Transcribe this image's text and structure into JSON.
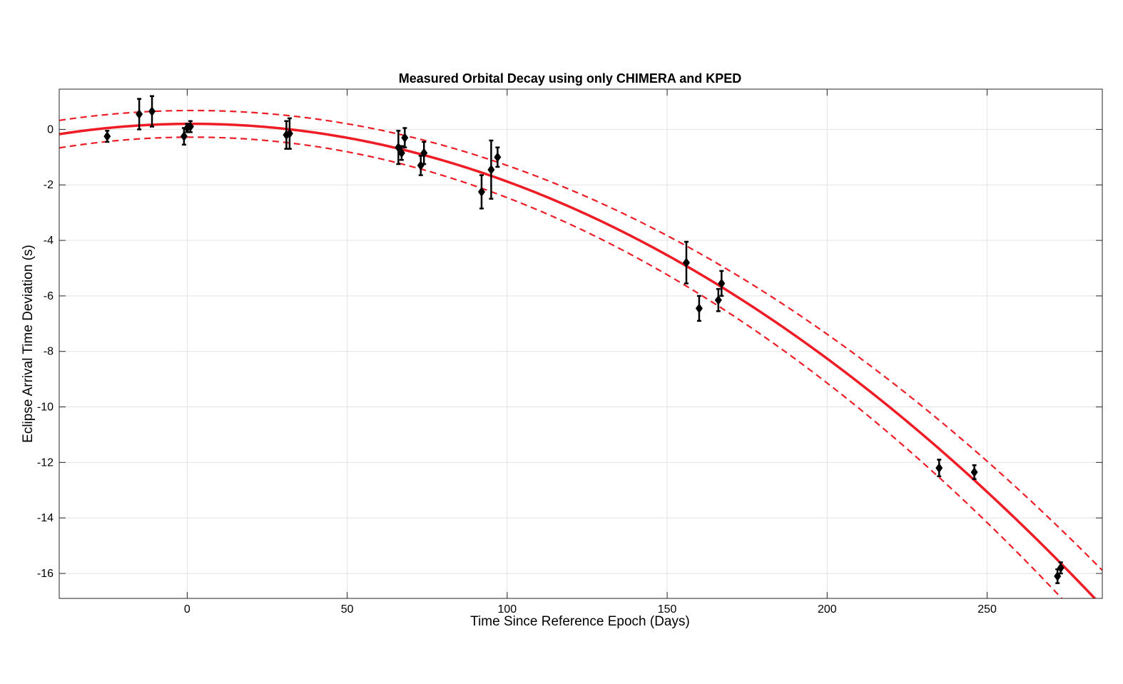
{
  "chart_data": {
    "type": "scatter",
    "title": "Measured Orbital Decay using only CHIMERA and KPED",
    "xlabel": "Time Since Reference Epoch (Days)",
    "ylabel": "Eclipse Arrival Time Deviation (s)",
    "xlim": [
      -40,
      286
    ],
    "ylim": [
      -16.9,
      1.45
    ],
    "xticks": [
      0,
      50,
      100,
      150,
      200,
      250
    ],
    "yticks": [
      0,
      -2,
      -4,
      -6,
      -8,
      -10,
      -12,
      -14,
      -16
    ],
    "grid": true,
    "colors": {
      "fit": "#ee1c25",
      "points": "#000000",
      "grid": "#e3e3e3",
      "axes": "#262626"
    },
    "series": [
      {
        "type": "errorbar",
        "x": [
          -25,
          -15,
          -11,
          -1,
          0,
          1,
          31,
          32,
          66,
          67,
          68,
          73,
          74,
          92,
          95,
          97,
          156,
          160,
          166,
          167,
          235,
          246,
          272,
          273
        ],
        "y": [
          -0.25,
          0.55,
          0.65,
          -0.25,
          0.05,
          0.1,
          -0.2,
          -0.15,
          -0.65,
          -0.85,
          -0.3,
          -1.3,
          -0.85,
          -2.25,
          -1.45,
          -1.0,
          -4.8,
          -6.45,
          -6.15,
          -5.55,
          -12.2,
          -12.35,
          -16.1,
          -15.8
        ],
        "yerr": [
          0.2,
          0.55,
          0.55,
          0.3,
          0.15,
          0.2,
          0.5,
          0.55,
          0.6,
          0.25,
          0.35,
          0.35,
          0.4,
          0.6,
          1.05,
          0.35,
          0.75,
          0.45,
          0.4,
          0.45,
          0.3,
          0.25,
          0.25,
          0.2
        ]
      },
      {
        "type": "fit",
        "style": "solid",
        "equation": {
          "a": -0.000215,
          "b": 0.0007,
          "c": 0.2
        }
      },
      {
        "type": "fit",
        "style": "dashed",
        "equation": {
          "a": -0.000205,
          "b": 0.0007,
          "c": 0.68
        }
      },
      {
        "type": "fit",
        "style": "dashed",
        "equation": {
          "a": -0.000225,
          "b": 0.0007,
          "c": -0.28
        }
      }
    ]
  }
}
